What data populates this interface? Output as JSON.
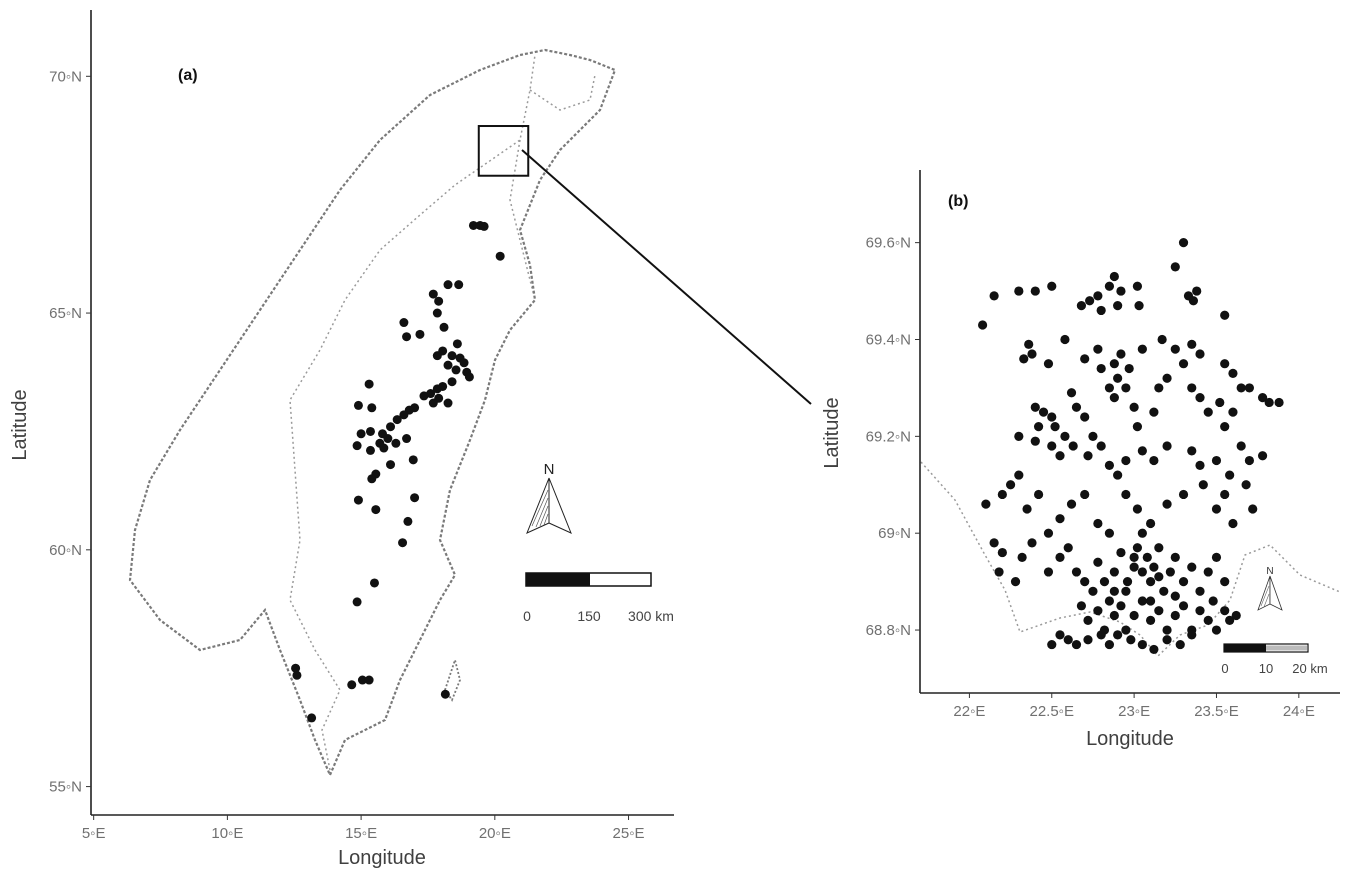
{
  "panel_a": {
    "label": "(a)",
    "xlabel": "Longitude",
    "ylabel": "Latitude",
    "xticks": [
      {
        "v": 5,
        "t": "5◦E"
      },
      {
        "v": 10,
        "t": "10◦E"
      },
      {
        "v": 15,
        "t": "15◦E"
      },
      {
        "v": 20,
        "t": "20◦E"
      },
      {
        "v": 25,
        "t": "25◦E"
      }
    ],
    "yticks": [
      {
        "v": 55,
        "t": "55◦N"
      },
      {
        "v": 60,
        "t": "60◦N"
      },
      {
        "v": 65,
        "t": "65◦N"
      },
      {
        "v": 70,
        "t": "70◦N"
      }
    ],
    "xlim": [
      4.9,
      26.7
    ],
    "ylim": [
      54.4,
      71.4
    ],
    "north_label": "N",
    "scale_labels": [
      "0",
      "150",
      "300 km"
    ],
    "inset_box": {
      "lon": [
        19.4,
        21.25
      ],
      "lat": [
        67.9,
        68.95
      ]
    },
    "points": [
      [
        19.2,
        66.85
      ],
      [
        19.45,
        66.85
      ],
      [
        19.6,
        66.83
      ],
      [
        20.2,
        66.2
      ],
      [
        18.25,
        65.6
      ],
      [
        18.65,
        65.6
      ],
      [
        17.7,
        65.4
      ],
      [
        17.9,
        65.25
      ],
      [
        17.85,
        65.0
      ],
      [
        16.6,
        64.8
      ],
      [
        16.7,
        64.5
      ],
      [
        17.2,
        64.55
      ],
      [
        18.1,
        64.7
      ],
      [
        18.6,
        64.35
      ],
      [
        18.05,
        64.2
      ],
      [
        17.85,
        64.1
      ],
      [
        18.4,
        64.1
      ],
      [
        18.7,
        64.05
      ],
      [
        18.25,
        63.9
      ],
      [
        18.55,
        63.8
      ],
      [
        18.95,
        63.75
      ],
      [
        18.85,
        63.95
      ],
      [
        19.05,
        63.65
      ],
      [
        18.4,
        63.55
      ],
      [
        18.05,
        63.45
      ],
      [
        17.85,
        63.4
      ],
      [
        17.6,
        63.3
      ],
      [
        17.35,
        63.25
      ],
      [
        17.9,
        63.2
      ],
      [
        18.25,
        63.1
      ],
      [
        17.7,
        63.1
      ],
      [
        17.0,
        63.0
      ],
      [
        16.8,
        62.95
      ],
      [
        16.6,
        62.85
      ],
      [
        16.35,
        62.75
      ],
      [
        16.1,
        62.6
      ],
      [
        15.8,
        62.45
      ],
      [
        15.7,
        62.25
      ],
      [
        16.0,
        62.35
      ],
      [
        15.35,
        62.5
      ],
      [
        15.0,
        62.45
      ],
      [
        14.85,
        62.2
      ],
      [
        15.35,
        62.1
      ],
      [
        16.3,
        62.25
      ],
      [
        16.7,
        62.35
      ],
      [
        15.3,
        63.5
      ],
      [
        14.9,
        63.05
      ],
      [
        15.4,
        63.0
      ],
      [
        15.85,
        62.15
      ],
      [
        16.1,
        61.8
      ],
      [
        15.55,
        61.6
      ],
      [
        15.4,
        61.5
      ],
      [
        16.95,
        61.9
      ],
      [
        14.9,
        61.05
      ],
      [
        15.55,
        60.85
      ],
      [
        17.0,
        61.1
      ],
      [
        16.75,
        60.6
      ],
      [
        16.55,
        60.15
      ],
      [
        15.5,
        59.3
      ],
      [
        14.85,
        58.9
      ],
      [
        12.55,
        57.5
      ],
      [
        12.6,
        57.35
      ],
      [
        13.15,
        56.45
      ],
      [
        14.65,
        57.15
      ],
      [
        15.05,
        57.25
      ],
      [
        15.3,
        57.25
      ],
      [
        18.15,
        56.95
      ]
    ]
  },
  "panel_b": {
    "label": "(b)",
    "xlabel": "Longitude",
    "ylabel": "Latitude",
    "xticks": [
      {
        "v": 22,
        "t": "22◦E"
      },
      {
        "v": 22.5,
        "t": "22.5◦E"
      },
      {
        "v": 23,
        "t": "23◦E"
      },
      {
        "v": 23.5,
        "t": "23.5◦E"
      },
      {
        "v": 24,
        "t": "24◦E"
      }
    ],
    "yticks": [
      {
        "v": 68.8,
        "t": "68.8◦N"
      },
      {
        "v": 69,
        "t": "69◦N"
      },
      {
        "v": 69.2,
        "t": "69.2◦N"
      },
      {
        "v": 69.4,
        "t": "69.4◦N"
      },
      {
        "v": 69.6,
        "t": "69.6◦N"
      }
    ],
    "xlim": [
      21.7,
      24.25
    ],
    "ylim": [
      68.67,
      69.75
    ],
    "north_label": "N",
    "scale_labels": [
      "0",
      "10",
      "20 km"
    ],
    "points": [
      [
        22.08,
        69.43
      ],
      [
        22.15,
        69.49
      ],
      [
        22.3,
        69.5
      ],
      [
        22.4,
        69.5
      ],
      [
        22.5,
        69.51
      ],
      [
        22.68,
        69.47
      ],
      [
        22.73,
        69.48
      ],
      [
        22.78,
        69.49
      ],
      [
        22.8,
        69.46
      ],
      [
        22.85,
        69.51
      ],
      [
        22.88,
        69.53
      ],
      [
        22.92,
        69.5
      ],
      [
        22.9,
        69.47
      ],
      [
        23.02,
        69.51
      ],
      [
        23.03,
        69.47
      ],
      [
        23.25,
        69.55
      ],
      [
        23.3,
        69.6
      ],
      [
        23.33,
        69.49
      ],
      [
        23.36,
        69.48
      ],
      [
        23.38,
        69.5
      ],
      [
        23.55,
        69.45
      ],
      [
        22.33,
        69.36
      ],
      [
        22.36,
        69.39
      ],
      [
        22.38,
        69.37
      ],
      [
        22.48,
        69.35
      ],
      [
        22.58,
        69.4
      ],
      [
        22.7,
        69.36
      ],
      [
        22.78,
        69.38
      ],
      [
        22.8,
        69.34
      ],
      [
        22.88,
        69.35
      ],
      [
        22.9,
        69.32
      ],
      [
        22.92,
        69.37
      ],
      [
        22.97,
        69.34
      ],
      [
        23.05,
        69.38
      ],
      [
        23.17,
        69.4
      ],
      [
        23.25,
        69.38
      ],
      [
        23.3,
        69.35
      ],
      [
        23.35,
        69.39
      ],
      [
        23.4,
        69.37
      ],
      [
        23.55,
        69.35
      ],
      [
        23.6,
        69.33
      ],
      [
        23.65,
        69.3
      ],
      [
        23.7,
        69.3
      ],
      [
        23.78,
        69.28
      ],
      [
        23.82,
        69.27
      ],
      [
        23.88,
        69.27
      ],
      [
        22.4,
        69.26
      ],
      [
        22.45,
        69.25
      ],
      [
        22.5,
        69.24
      ],
      [
        22.52,
        69.22
      ],
      [
        22.62,
        69.29
      ],
      [
        22.65,
        69.26
      ],
      [
        22.7,
        69.24
      ],
      [
        22.75,
        69.2
      ],
      [
        22.85,
        69.3
      ],
      [
        22.88,
        69.28
      ],
      [
        22.95,
        69.3
      ],
      [
        23.0,
        69.26
      ],
      [
        23.02,
        69.22
      ],
      [
        23.12,
        69.25
      ],
      [
        23.15,
        69.3
      ],
      [
        23.2,
        69.32
      ],
      [
        23.35,
        69.3
      ],
      [
        23.4,
        69.28
      ],
      [
        23.45,
        69.25
      ],
      [
        23.52,
        69.27
      ],
      [
        23.55,
        69.22
      ],
      [
        23.6,
        69.25
      ],
      [
        22.3,
        69.2
      ],
      [
        22.4,
        69.19
      ],
      [
        22.5,
        69.18
      ],
      [
        22.55,
        69.16
      ],
      [
        22.63,
        69.18
      ],
      [
        22.72,
        69.16
      ],
      [
        22.8,
        69.18
      ],
      [
        22.85,
        69.14
      ],
      [
        22.9,
        69.12
      ],
      [
        22.95,
        69.15
      ],
      [
        23.05,
        69.17
      ],
      [
        23.12,
        69.15
      ],
      [
        23.2,
        69.18
      ],
      [
        23.35,
        69.17
      ],
      [
        23.4,
        69.14
      ],
      [
        23.5,
        69.15
      ],
      [
        23.58,
        69.12
      ],
      [
        23.65,
        69.18
      ],
      [
        23.7,
        69.15
      ],
      [
        23.78,
        69.16
      ],
      [
        22.2,
        69.08
      ],
      [
        22.25,
        69.1
      ],
      [
        22.3,
        69.12
      ],
      [
        22.35,
        69.05
      ],
      [
        22.42,
        69.08
      ],
      [
        22.48,
        69.0
      ],
      [
        22.55,
        69.03
      ],
      [
        22.62,
        69.06
      ],
      [
        22.7,
        69.08
      ],
      [
        22.78,
        69.02
      ],
      [
        22.85,
        69.0
      ],
      [
        22.95,
        69.08
      ],
      [
        23.02,
        69.05
      ],
      [
        23.1,
        69.02
      ],
      [
        23.2,
        69.06
      ],
      [
        23.3,
        69.08
      ],
      [
        23.42,
        69.1
      ],
      [
        23.5,
        69.05
      ],
      [
        23.55,
        69.08
      ],
      [
        23.6,
        69.02
      ],
      [
        23.68,
        69.1
      ],
      [
        23.72,
        69.05
      ],
      [
        22.1,
        69.06
      ],
      [
        22.15,
        68.98
      ],
      [
        22.2,
        68.96
      ],
      [
        22.18,
        68.92
      ],
      [
        22.28,
        68.9
      ],
      [
        22.32,
        68.95
      ],
      [
        22.38,
        68.98
      ],
      [
        22.48,
        68.92
      ],
      [
        22.55,
        68.95
      ],
      [
        22.6,
        68.97
      ],
      [
        22.65,
        68.92
      ],
      [
        22.7,
        68.9
      ],
      [
        22.75,
        68.88
      ],
      [
        22.78,
        68.94
      ],
      [
        22.82,
        68.9
      ],
      [
        22.85,
        68.86
      ],
      [
        22.88,
        68.92
      ],
      [
        22.92,
        68.96
      ],
      [
        22.96,
        68.9
      ],
      [
        23.0,
        68.93
      ],
      [
        23.02,
        68.97
      ],
      [
        23.05,
        68.92
      ],
      [
        23.08,
        68.95
      ],
      [
        23.1,
        68.9
      ],
      [
        23.12,
        68.93
      ],
      [
        23.15,
        68.97
      ],
      [
        23.18,
        68.88
      ],
      [
        23.22,
        68.92
      ],
      [
        23.25,
        68.95
      ],
      [
        23.3,
        68.9
      ],
      [
        23.35,
        68.93
      ],
      [
        23.4,
        68.88
      ],
      [
        23.45,
        68.92
      ],
      [
        23.5,
        68.95
      ],
      [
        23.55,
        68.9
      ],
      [
        22.68,
        68.85
      ],
      [
        22.72,
        68.82
      ],
      [
        22.78,
        68.84
      ],
      [
        22.82,
        68.8
      ],
      [
        22.88,
        68.83
      ],
      [
        22.92,
        68.85
      ],
      [
        22.95,
        68.8
      ],
      [
        23.0,
        68.83
      ],
      [
        23.05,
        68.86
      ],
      [
        23.1,
        68.82
      ],
      [
        23.15,
        68.84
      ],
      [
        23.2,
        68.8
      ],
      [
        23.25,
        68.83
      ],
      [
        23.3,
        68.85
      ],
      [
        23.35,
        68.8
      ],
      [
        23.4,
        68.84
      ],
      [
        23.45,
        68.82
      ],
      [
        23.5,
        68.8
      ],
      [
        23.55,
        68.84
      ],
      [
        23.58,
        68.82
      ],
      [
        22.6,
        68.78
      ],
      [
        22.65,
        68.77
      ],
      [
        22.72,
        68.78
      ],
      [
        22.8,
        68.79
      ],
      [
        22.85,
        68.77
      ],
      [
        22.9,
        68.79
      ],
      [
        22.98,
        68.78
      ],
      [
        23.05,
        68.77
      ],
      [
        23.12,
        68.76
      ],
      [
        23.2,
        68.78
      ],
      [
        23.28,
        68.77
      ],
      [
        23.35,
        68.79
      ],
      [
        22.5,
        68.77
      ],
      [
        22.55,
        68.79
      ],
      [
        23.0,
        68.95
      ],
      [
        23.05,
        69.0
      ],
      [
        22.95,
        68.88
      ],
      [
        23.1,
        68.86
      ],
      [
        23.15,
        68.91
      ],
      [
        23.25,
        68.87
      ],
      [
        22.88,
        68.88
      ],
      [
        23.62,
        68.83
      ],
      [
        23.48,
        68.86
      ],
      [
        22.42,
        69.22
      ],
      [
        22.58,
        69.2
      ]
    ]
  }
}
